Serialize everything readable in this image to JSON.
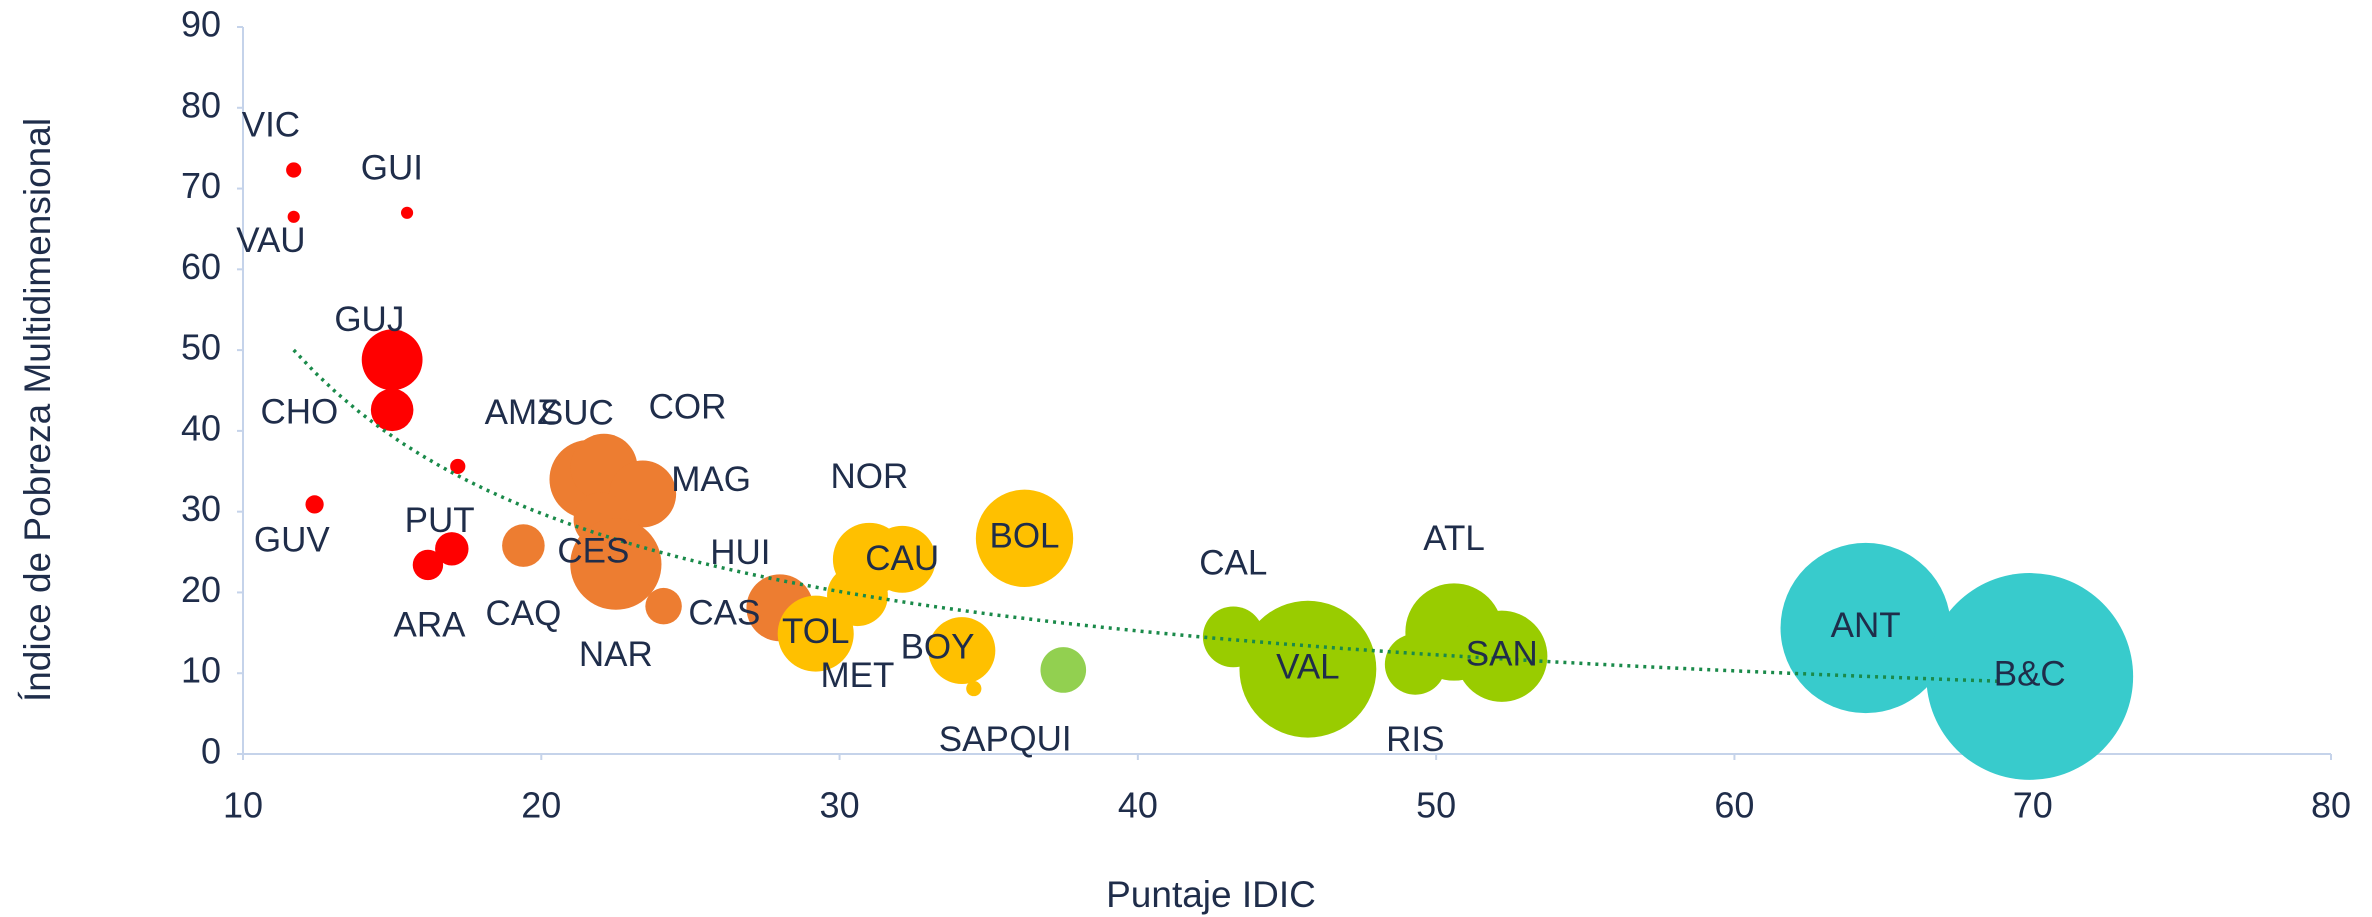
{
  "chart_data": {
    "type": "bubble",
    "x_label": "Puntaje IDIC",
    "y_label": "Índice de Pobreza Multidimensional",
    "xlim": [
      10,
      80
    ],
    "xticks": [
      10,
      20,
      30,
      40,
      50,
      60,
      70,
      80
    ],
    "ylim": [
      0,
      90
    ],
    "yticks": [
      0,
      10,
      20,
      30,
      40,
      50,
      60,
      70,
      80,
      90
    ],
    "labels": [
      "VIC",
      "VAU",
      "GUI",
      "GUJ",
      "CHO",
      "AMZ",
      "GUV",
      "PUT",
      "ARA",
      "CAQ",
      "SUC",
      "COR",
      "MAG",
      "CES",
      "NAR",
      "CAS",
      "HUI",
      "TOL",
      "MET",
      "NOR",
      "CAU",
      "BOL",
      "BOY",
      "SAP",
      "QUI",
      "CAL",
      "VAL",
      "RIS",
      "ATL",
      "SAN",
      "ANT",
      "B&C"
    ],
    "x": [
      11.7,
      11.7,
      15.5,
      15.0,
      15.0,
      17.2,
      12.4,
      17.0,
      16.2,
      19.4,
      21.6,
      22.1,
      23.4,
      22.0,
      22.5,
      24.1,
      28.0,
      29.2,
      30.6,
      31.0,
      32.1,
      36.2,
      34.1,
      34.5,
      37.5,
      43.2,
      45.7,
      49.3,
      50.6,
      52.2,
      64.4,
      69.9
    ],
    "y": [
      72.3,
      66.5,
      67.0,
      48.8,
      42.6,
      35.6,
      30.9,
      25.4,
      23.4,
      25.8,
      34.0,
      35.5,
      32.2,
      29.0,
      23.5,
      18.3,
      18.1,
      14.9,
      19.6,
      24.1,
      24.1,
      26.7,
      12.8,
      8.1,
      10.4,
      14.5,
      10.5,
      11.1,
      15.1,
      12.1,
      15.6,
      9.6
    ],
    "sizes": [
      5,
      4,
      4,
      20,
      14,
      5,
      6,
      11,
      10,
      14,
      26,
      22,
      22,
      18,
      30,
      12,
      22,
      25,
      20,
      24,
      22,
      32,
      22,
      5,
      15,
      20,
      45,
      20,
      32,
      30,
      56,
      68
    ],
    "colors": [
      "#ff0000",
      "#ff0000",
      "#ff0000",
      "#ff0000",
      "#ff0000",
      "#ff0000",
      "#ff0000",
      "#ff0000",
      "#ff0000",
      "#ed7d31",
      "#ed7d31",
      "#ed7d31",
      "#ed7d31",
      "#ed7d31",
      "#ed7d31",
      "#ed7d31",
      "#ed7d31",
      "#ffc000",
      "#ffc000",
      "#ffc000",
      "#ffc000",
      "#ffc000",
      "#ffc000",
      "#ffc000",
      "#92d050",
      "#99cc00",
      "#99cc00",
      "#99cc00",
      "#99cc00",
      "#99cc00",
      "#38cbcc",
      "#38cbcc"
    ],
    "trendline": {
      "type": "power",
      "color": "#1a8a4a",
      "x_range": [
        11.7,
        69
      ],
      "a": 539.5,
      "b": -0.967
    }
  }
}
